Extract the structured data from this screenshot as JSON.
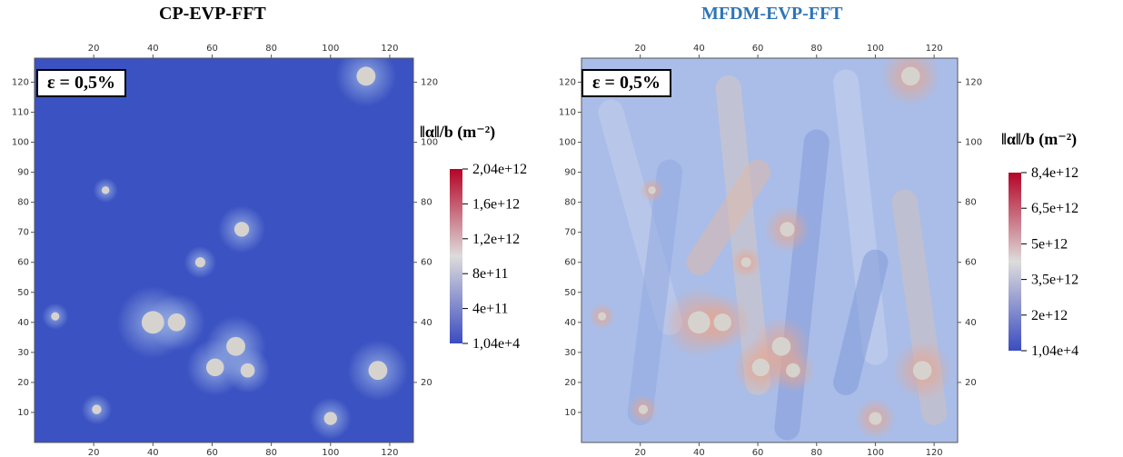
{
  "chart_data": [
    {
      "type": "heatmap",
      "title": "CP-EVP-FFT",
      "title_color": "#000000",
      "annotation": "ε = 0,5%",
      "xticks": [
        "20",
        "40",
        "60",
        "80",
        "100",
        "120"
      ],
      "yticks": [
        "10",
        "20",
        "30",
        "40",
        "50",
        "60",
        "70",
        "80",
        "90",
        "100",
        "110",
        "120"
      ],
      "right_yticks": [
        "20",
        "40",
        "60",
        "80",
        "100",
        "120"
      ],
      "xlim": [
        0,
        128
      ],
      "ylim": [
        0,
        128
      ],
      "colorbar": {
        "label": "‖α‖/b (m⁻²)",
        "labels": [
          "2,04e+12",
          "1,6e+12",
          "1,2e+12",
          "8e+11",
          "4e+11",
          "1,04e+4"
        ],
        "min": 10400,
        "max": 2040000000000,
        "colors": [
          "#3b4cc0",
          "#dddcdc",
          "#b40426"
        ]
      },
      "background_level": 0.02,
      "grains": [
        {
          "x": 112,
          "y": 122,
          "r": 3.2
        },
        {
          "x": 24,
          "y": 84,
          "r": 1.3
        },
        {
          "x": 70,
          "y": 71,
          "r": 2.5
        },
        {
          "x": 56,
          "y": 60,
          "r": 1.7
        },
        {
          "x": 7,
          "y": 42,
          "r": 1.4
        },
        {
          "x": 40,
          "y": 40,
          "r": 3.8
        },
        {
          "x": 48,
          "y": 40,
          "r": 3.0
        },
        {
          "x": 68,
          "y": 32,
          "r": 3.2
        },
        {
          "x": 61,
          "y": 25,
          "r": 3.0
        },
        {
          "x": 72,
          "y": 24,
          "r": 2.4
        },
        {
          "x": 116,
          "y": 24,
          "r": 3.2
        },
        {
          "x": 21,
          "y": 11,
          "r": 1.6
        },
        {
          "x": 100,
          "y": 8,
          "r": 2.2
        }
      ]
    },
    {
      "type": "heatmap",
      "title": "MFDM-EVP-FFT",
      "title_color": "#2e75b6",
      "annotation": "ε = 0,5%",
      "xticks": [
        "20",
        "40",
        "60",
        "80",
        "100",
        "120"
      ],
      "yticks": [
        "10",
        "20",
        "30",
        "40",
        "50",
        "60",
        "70",
        "80",
        "90",
        "100",
        "110",
        "120"
      ],
      "right_yticks": [
        "20",
        "40",
        "60",
        "80",
        "100",
        "120"
      ],
      "xlim": [
        0,
        128
      ],
      "ylim": [
        0,
        128
      ],
      "colorbar": {
        "label": "‖α‖/b (m⁻²)",
        "labels": [
          "8,4e+12",
          "6,5e+12",
          "5e+12",
          "3,5e+12",
          "2e+12",
          "1,04e+4"
        ],
        "min": 10400,
        "max": 8400000000000,
        "colors": [
          "#3b4cc0",
          "#dddcdc",
          "#b40426"
        ]
      },
      "background_level": 0.3,
      "grains": [
        {
          "x": 112,
          "y": 122,
          "r": 3.2
        },
        {
          "x": 24,
          "y": 84,
          "r": 1.3
        },
        {
          "x": 70,
          "y": 71,
          "r": 2.5
        },
        {
          "x": 56,
          "y": 60,
          "r": 1.7
        },
        {
          "x": 7,
          "y": 42,
          "r": 1.4
        },
        {
          "x": 40,
          "y": 40,
          "r": 3.8
        },
        {
          "x": 48,
          "y": 40,
          "r": 3.0
        },
        {
          "x": 68,
          "y": 32,
          "r": 3.2
        },
        {
          "x": 61,
          "y": 25,
          "r": 3.0
        },
        {
          "x": 72,
          "y": 24,
          "r": 2.4
        },
        {
          "x": 116,
          "y": 24,
          "r": 3.2
        },
        {
          "x": 21,
          "y": 11,
          "r": 1.6
        },
        {
          "x": 100,
          "y": 8,
          "r": 2.2
        }
      ]
    }
  ]
}
